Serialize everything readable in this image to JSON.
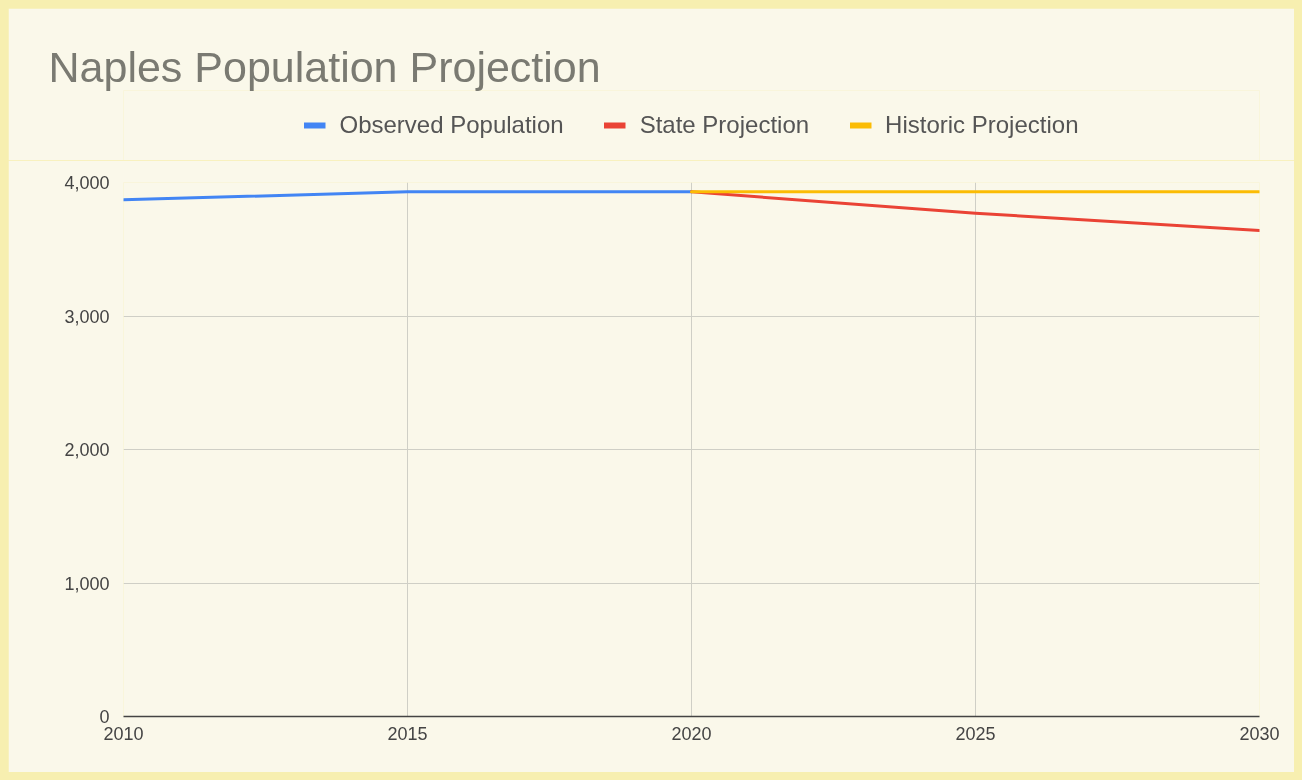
{
  "chart_data": {
    "type": "line",
    "title": "Naples Population Projection",
    "series": [
      {
        "name": "Observed Population",
        "color": "#4285f4",
        "x": [
          2010,
          2015,
          2020
        ],
        "values": [
          3870,
          3930,
          3930
        ]
      },
      {
        "name": "State Projection",
        "color": "#ea4335",
        "x": [
          2020,
          2025,
          2030
        ],
        "values": [
          3930,
          3770,
          3640
        ]
      },
      {
        "name": "Historic Projection",
        "color": "#fbbc04",
        "x": [
          2020,
          2025,
          2030
        ],
        "values": [
          3930,
          3930,
          3930
        ]
      }
    ],
    "xlim": [
      2010,
      2030
    ],
    "xticks": [
      2010,
      2015,
      2020,
      2025,
      2030
    ],
    "ylim": [
      0,
      4000
    ],
    "yticks": [
      0,
      {
        "value": 1000,
        "label": "1,000"
      },
      {
        "value": 2000,
        "label": "2,000"
      },
      {
        "value": 3000,
        "label": "3,000"
      },
      {
        "value": 4000,
        "label": "4,000"
      }
    ],
    "grid": true,
    "legend": "top",
    "line_style": "solid"
  }
}
